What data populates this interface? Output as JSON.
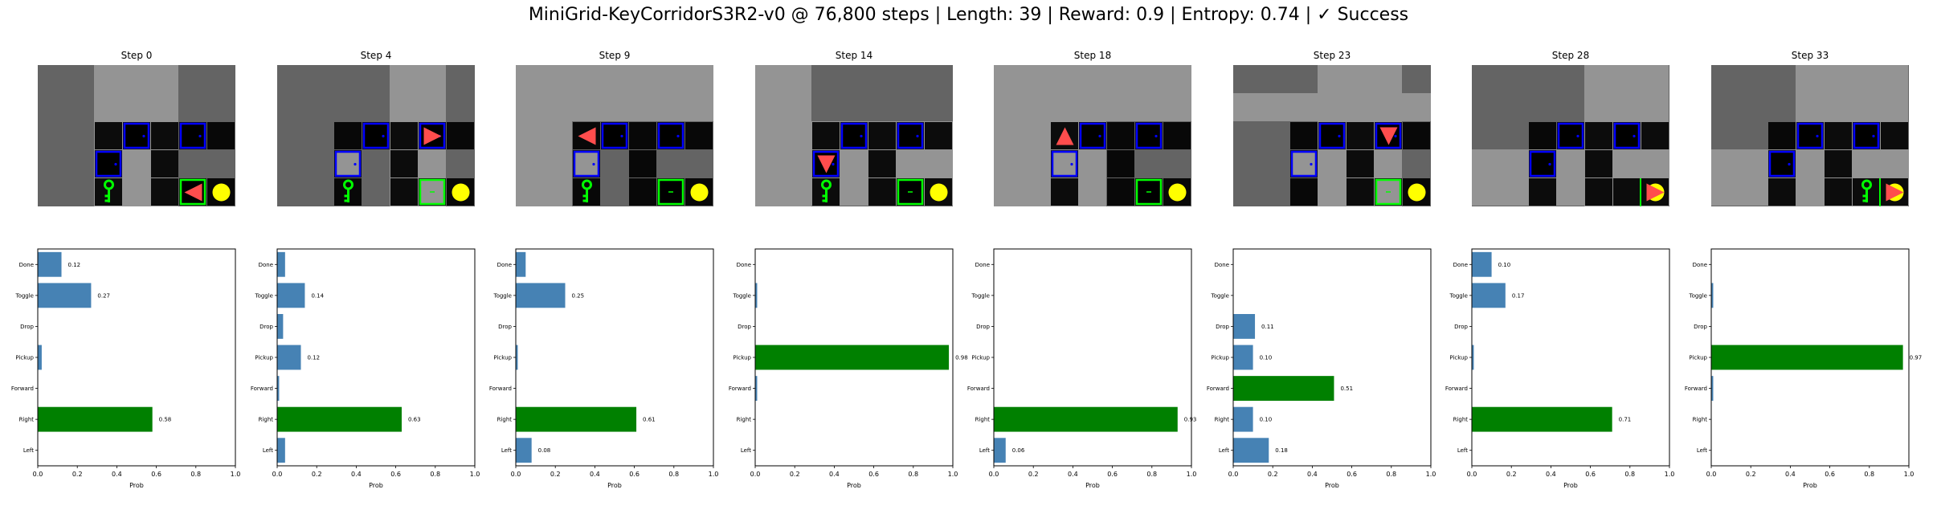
{
  "title": "MiniGrid-KeyCorridorS3R2-v0 @ 76,800 steps | Length: 39 | Reward: 0.9 | Entropy: 0.74 | ✓ Success",
  "colors": {
    "bar_default": "#4682b4",
    "bar_selected": "#008000",
    "wall": "#646464",
    "floor": "#000000",
    "fog": "#949494",
    "door_locked": "#0000ff",
    "door_open": "#00ff00",
    "key": "#00ff00",
    "ball": "#ffff00",
    "agent": "#ff4d4d"
  },
  "icons": [
    "agent-triangle-icon",
    "key-icon",
    "ball-icon",
    "door-icon"
  ],
  "chart_data": [
    {
      "type": "bar",
      "orientation": "horizontal",
      "title": "Step 0",
      "categories": [
        "Left",
        "Right",
        "Forward",
        "Pickup",
        "Drop",
        "Toggle",
        "Done"
      ],
      "values": [
        0.0,
        0.58,
        0.0,
        0.02,
        0.0,
        0.27,
        0.12
      ],
      "value_labels": [
        "",
        "0.58",
        "",
        "",
        "",
        "0.27",
        "0.12"
      ],
      "selected": "Right",
      "xlabel": "Prob",
      "xlim": [
        0,
        1
      ],
      "xticks": [
        "0.0",
        "0.2",
        "0.4",
        "0.6",
        "0.8",
        "1.0"
      ]
    },
    {
      "type": "bar",
      "orientation": "horizontal",
      "title": "Step 4",
      "categories": [
        "Left",
        "Right",
        "Forward",
        "Pickup",
        "Drop",
        "Toggle",
        "Done"
      ],
      "values": [
        0.04,
        0.63,
        0.01,
        0.12,
        0.03,
        0.14,
        0.04
      ],
      "value_labels": [
        "",
        "0.63",
        "",
        "0.12",
        "",
        "0.14",
        ""
      ],
      "selected": "Right",
      "xlabel": "Prob",
      "xlim": [
        0,
        1
      ],
      "xticks": [
        "0.0",
        "0.2",
        "0.4",
        "0.6",
        "0.8",
        "1.0"
      ]
    },
    {
      "type": "bar",
      "orientation": "horizontal",
      "title": "Step 9",
      "categories": [
        "Left",
        "Right",
        "Forward",
        "Pickup",
        "Drop",
        "Toggle",
        "Done"
      ],
      "values": [
        0.08,
        0.61,
        0.0,
        0.01,
        0.0,
        0.25,
        0.05
      ],
      "value_labels": [
        "0.08",
        "0.61",
        "",
        "",
        "",
        "0.25",
        ""
      ],
      "selected": "Right",
      "xlabel": "Prob",
      "xlim": [
        0,
        1
      ],
      "xticks": [
        "0.0",
        "0.2",
        "0.4",
        "0.6",
        "0.8",
        "1.0"
      ]
    },
    {
      "type": "bar",
      "orientation": "horizontal",
      "title": "Step 14",
      "categories": [
        "Left",
        "Right",
        "Forward",
        "Pickup",
        "Drop",
        "Toggle",
        "Done"
      ],
      "values": [
        0.0,
        0.0,
        0.01,
        0.98,
        0.0,
        0.01,
        0.0
      ],
      "value_labels": [
        "",
        "",
        "",
        "0.98",
        "",
        "",
        ""
      ],
      "selected": "Pickup",
      "xlabel": "Prob",
      "xlim": [
        0,
        1
      ],
      "xticks": [
        "0.0",
        "0.2",
        "0.4",
        "0.6",
        "0.8",
        "1.0"
      ]
    },
    {
      "type": "bar",
      "orientation": "horizontal",
      "title": "Step 18",
      "categories": [
        "Left",
        "Right",
        "Forward",
        "Pickup",
        "Drop",
        "Toggle",
        "Done"
      ],
      "values": [
        0.06,
        0.93,
        0.0,
        0.0,
        0.0,
        0.0,
        0.0
      ],
      "value_labels": [
        "0.06",
        "0.93",
        "",
        "",
        "",
        "",
        ""
      ],
      "selected": "Right",
      "xlabel": "Prob",
      "xlim": [
        0,
        1
      ],
      "xticks": [
        "0.0",
        "0.2",
        "0.4",
        "0.6",
        "0.8",
        "1.0"
      ]
    },
    {
      "type": "bar",
      "orientation": "horizontal",
      "title": "Step 23",
      "categories": [
        "Left",
        "Right",
        "Forward",
        "Pickup",
        "Drop",
        "Toggle",
        "Done"
      ],
      "values": [
        0.18,
        0.1,
        0.51,
        0.1,
        0.11,
        0.0,
        0.0
      ],
      "value_labels": [
        "0.18",
        "0.10",
        "0.51",
        "0.10",
        "0.11",
        "",
        ""
      ],
      "selected": "Forward",
      "xlabel": "Prob",
      "xlim": [
        0,
        1
      ],
      "xticks": [
        "0.0",
        "0.2",
        "0.4",
        "0.6",
        "0.8",
        "1.0"
      ]
    },
    {
      "type": "bar",
      "orientation": "horizontal",
      "title": "Step 28",
      "categories": [
        "Left",
        "Right",
        "Forward",
        "Pickup",
        "Drop",
        "Toggle",
        "Done"
      ],
      "values": [
        0.0,
        0.71,
        0.0,
        0.01,
        0.0,
        0.17,
        0.1
      ],
      "value_labels": [
        "",
        "0.71",
        "",
        "",
        "",
        "0.17",
        "0.10"
      ],
      "selected": "Right",
      "xlabel": "Prob",
      "xlim": [
        0,
        1
      ],
      "xticks": [
        "0.0",
        "0.2",
        "0.4",
        "0.6",
        "0.8",
        "1.0"
      ]
    },
    {
      "type": "bar",
      "orientation": "horizontal",
      "title": "Step 33",
      "categories": [
        "Left",
        "Right",
        "Forward",
        "Pickup",
        "Drop",
        "Toggle",
        "Done"
      ],
      "values": [
        0.0,
        0.0,
        0.01,
        0.97,
        0.0,
        0.01,
        0.0
      ],
      "value_labels": [
        "",
        "",
        "",
        "0.97",
        "",
        "",
        ""
      ],
      "selected": "Pickup",
      "xlabel": "Prob",
      "xlim": [
        0,
        1
      ],
      "xticks": [
        "0.0",
        "0.2",
        "0.4",
        "0.6",
        "0.8",
        "1.0"
      ]
    }
  ],
  "frames": [
    {
      "fog_cols": [
        2,
        3,
        4
      ],
      "fog_rows": [],
      "agent": {
        "col": 4,
        "row": 3,
        "dir": "left"
      },
      "key_visible": true,
      "locked_door_fill": "black",
      "open_door_fill": "black",
      "open_door_active": true
    },
    {
      "fog_cols": [
        4,
        5
      ],
      "fog_rows": [],
      "agent": {
        "col": 4,
        "row": 1,
        "dir": "right"
      },
      "key_visible": true,
      "locked_door_fill": "grey",
      "open_door_fill": "grey",
      "open_door_active": true
    },
    {
      "fog_cols": [
        0,
        1
      ],
      "fog_rows": [
        0,
        1
      ],
      "agent": {
        "col": 1,
        "row": 1,
        "dir": "left"
      },
      "key_visible": true,
      "locked_door_fill": "grey",
      "open_door_fill": "black",
      "open_door_active": true
    },
    {
      "fog_cols": [
        0,
        1
      ],
      "fog_rows": [
        2,
        3,
        4
      ],
      "agent": {
        "col": 1,
        "row": 2,
        "dir": "down"
      },
      "key_visible": true,
      "locked_door_fill": "black",
      "open_door_fill": "black",
      "open_door_active": true
    },
    {
      "fog_cols": [
        0,
        1,
        2,
        3
      ],
      "fog_rows": [
        0,
        1
      ],
      "agent": {
        "col": 1,
        "row": 1,
        "dir": "up"
      },
      "key_visible": false,
      "locked_door_fill": "grey",
      "open_door_fill": "black",
      "open_door_active": true
    },
    {
      "fog_cols": [
        3,
        4,
        5
      ],
      "fog_rows": [
        1
      ],
      "agent": {
        "col": 4,
        "row": 1,
        "dir": "down"
      },
      "key_visible": false,
      "locked_door_fill": "grey",
      "open_door_fill": "grey",
      "open_door_active": true
    },
    {
      "fog_cols": [
        4,
        5,
        6
      ],
      "fog_rows": [
        3,
        4
      ],
      "agent": {
        "col": 5,
        "row": 3,
        "dir": "right"
      },
      "key_visible": false,
      "locked_door_fill": "black",
      "open_door_fill": "grey",
      "open_door_active": false
    },
    {
      "fog_cols": [
        3,
        4,
        5,
        6
      ],
      "fog_rows": [
        3,
        4
      ],
      "agent": {
        "col": 5,
        "row": 3,
        "dir": "right"
      },
      "key_visible": true,
      "key_col": 4,
      "locked_door_fill": "black",
      "open_door_fill": "grey",
      "open_door_active": false
    }
  ]
}
